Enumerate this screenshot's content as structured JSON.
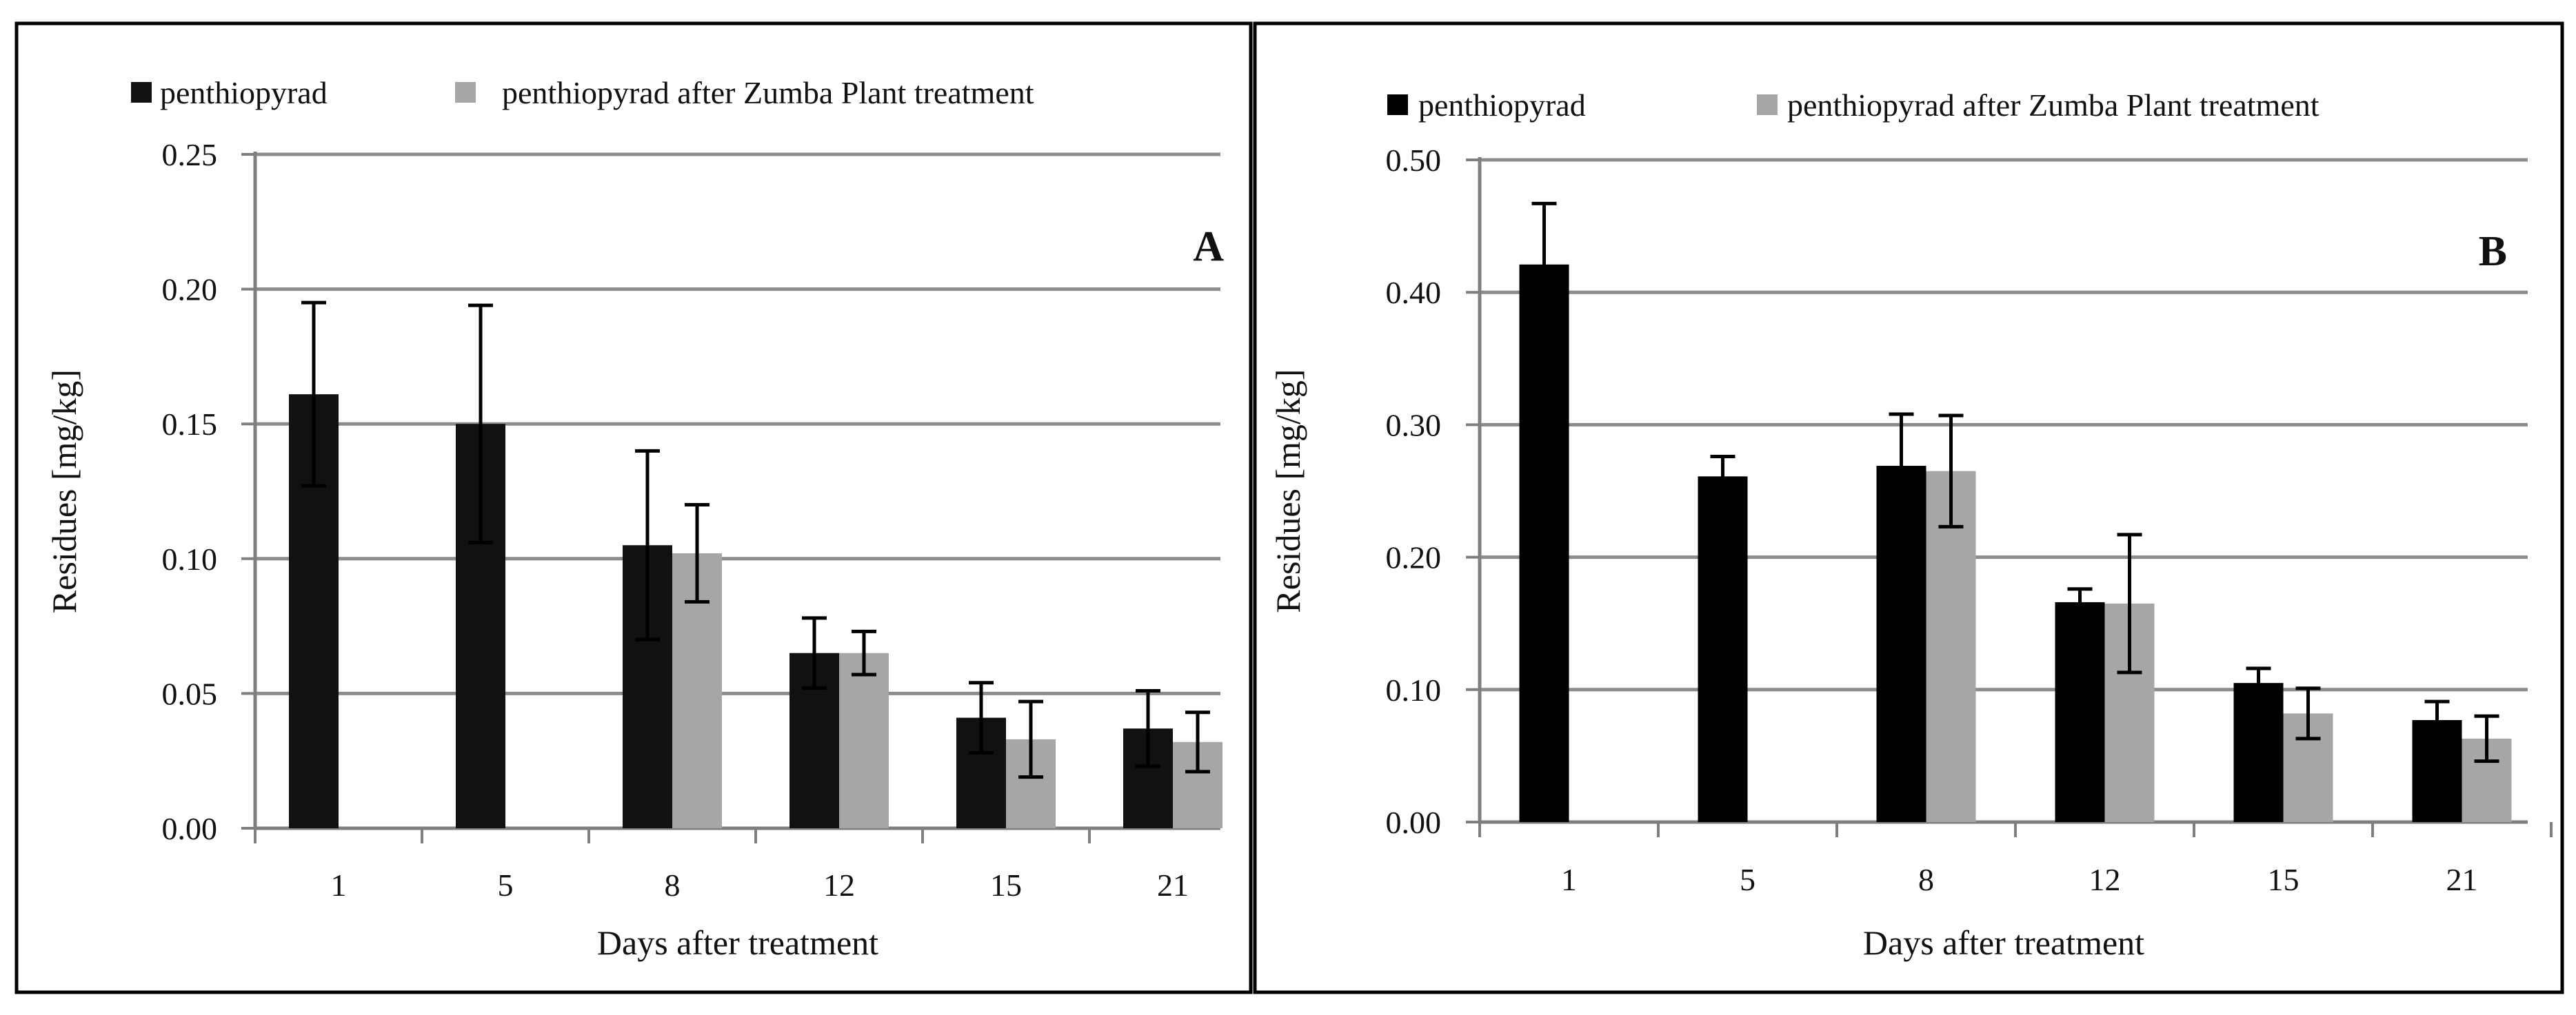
{
  "figure": {
    "panels": [
      {
        "id": "A",
        "panel_label": "A",
        "legend": {
          "items": [
            {
              "label": "penthiopyrad",
              "color": "#111111"
            },
            {
              "label": "penthiopyrad after Zumba Plant treatment",
              "color": "#a6a6a6"
            }
          ]
        },
        "y_tick_labels": [
          "0.00",
          "0.05",
          "0.10",
          "0.15",
          "0.20",
          "0.25"
        ],
        "chart_data": {
          "type": "bar",
          "title": "",
          "xlabel": "Days after treatment",
          "ylabel": "Residues [mg/kg]",
          "ylim": [
            0,
            0.25
          ],
          "grid": true,
          "legend_position": "top",
          "categories": [
            "1",
            "5",
            "8",
            "12",
            "15",
            "21"
          ],
          "series": [
            {
              "name": "penthiopyrad",
              "color": "#111111",
              "values": [
                0.161,
                0.15,
                0.105,
                0.065,
                0.041,
                0.037
              ],
              "errors": [
                0.034,
                0.044,
                0.035,
                0.013,
                0.013,
                0.014
              ]
            },
            {
              "name": "penthiopyrad after Zumba Plant treatment",
              "color": "#a6a6a6",
              "values": [
                null,
                null,
                0.102,
                0.065,
                0.033,
                0.032
              ],
              "errors": [
                null,
                null,
                0.018,
                0.008,
                0.014,
                0.011
              ]
            }
          ]
        }
      },
      {
        "id": "B",
        "panel_label": "B",
        "legend": {
          "items": [
            {
              "label": "penthiopyrad",
              "color": "#000000"
            },
            {
              "label": "penthiopyrad after Zumba Plant treatment",
              "color": "#a6a6a6"
            }
          ]
        },
        "y_tick_labels": [
          "0.00",
          "0.10",
          "0.20",
          "0.30",
          "0.40",
          "0.50"
        ],
        "chart_data": {
          "type": "bar",
          "title": "",
          "xlabel": "Days after treatment",
          "ylabel": "Residues [mg/kg]",
          "ylim": [
            0,
            0.5
          ],
          "grid": true,
          "legend_position": "top",
          "categories": [
            "1",
            "5",
            "8",
            "12",
            "15",
            "21"
          ],
          "series": [
            {
              "name": "penthiopyrad",
              "color": "#000000",
              "values": [
                0.421,
                0.261,
                0.269,
                0.166,
                0.105,
                0.077
              ],
              "errors": [
                0.046,
                0.015,
                0.039,
                0.01,
                0.011,
                0.014
              ]
            },
            {
              "name": "penthiopyrad after Zumba Plant treatment",
              "color": "#a6a6a6",
              "values": [
                null,
                null,
                0.265,
                0.165,
                0.082,
                0.063
              ],
              "errors": [
                null,
                null,
                0.042,
                0.052,
                0.019,
                0.017
              ]
            }
          ]
        }
      }
    ]
  }
}
